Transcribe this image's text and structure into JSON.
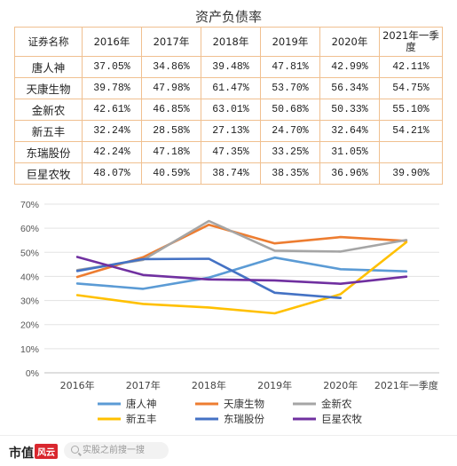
{
  "title": "资产负债率",
  "table": {
    "header": [
      "证券名称",
      "2016年",
      "2017年",
      "2018年",
      "2019年",
      "2020年",
      "2021年一季度"
    ],
    "rows": [
      {
        "name": "唐人神",
        "cells": [
          "37.05%",
          "34.86%",
          "39.48%",
          "47.81%",
          "42.99%",
          "42.11%"
        ]
      },
      {
        "name": "天康生物",
        "cells": [
          "39.78%",
          "47.98%",
          "61.47%",
          "53.70%",
          "56.34%",
          "54.75%"
        ]
      },
      {
        "name": "金新农",
        "cells": [
          "42.61%",
          "46.85%",
          "63.01%",
          "50.68%",
          "50.33%",
          "55.10%"
        ]
      },
      {
        "name": "新五丰",
        "cells": [
          "32.24%",
          "28.58%",
          "27.13%",
          "24.70%",
          "32.64%",
          "54.21%"
        ]
      },
      {
        "name": "东瑞股份",
        "cells": [
          "42.24%",
          "47.18%",
          "47.35%",
          "33.25%",
          "31.05%",
          ""
        ]
      },
      {
        "name": "巨星农牧",
        "cells": [
          "48.07%",
          "40.59%",
          "38.74%",
          "38.35%",
          "36.96%",
          "39.90%"
        ]
      }
    ]
  },
  "chart_data": {
    "type": "line",
    "categories": [
      "2016年",
      "2017年",
      "2018年",
      "2019年",
      "2020年",
      "2021年一季度"
    ],
    "ylim": [
      0,
      70
    ],
    "yticks": [
      "0%",
      "10%",
      "20%",
      "30%",
      "40%",
      "50%",
      "60%",
      "70%"
    ],
    "grid": true,
    "legend": "bottom",
    "series": [
      {
        "name": "唐人神",
        "color": "#5b9bd5",
        "values": [
          37.05,
          34.86,
          39.48,
          47.81,
          42.99,
          42.11
        ]
      },
      {
        "name": "天康生物",
        "color": "#ed7d31",
        "values": [
          39.78,
          47.98,
          61.47,
          53.7,
          56.34,
          54.75
        ]
      },
      {
        "name": "金新农",
        "color": "#a5a5a5",
        "values": [
          42.61,
          46.85,
          63.01,
          50.68,
          50.33,
          55.1
        ]
      },
      {
        "name": "新五丰",
        "color": "#ffc000",
        "values": [
          32.24,
          28.58,
          27.13,
          24.7,
          32.64,
          54.21
        ]
      },
      {
        "name": "东瑞股份",
        "color": "#4472c4",
        "values": [
          42.24,
          47.18,
          47.35,
          33.25,
          31.05,
          null
        ]
      },
      {
        "name": "巨星农牧",
        "color": "#7030a0",
        "values": [
          48.07,
          40.59,
          38.74,
          38.35,
          36.96,
          39.9
        ]
      }
    ]
  },
  "footer": {
    "logo_text": "市值",
    "logo_badge": "风云",
    "search_placeholder": "实股之前搜一搜",
    "search_icon": "search-icon"
  }
}
